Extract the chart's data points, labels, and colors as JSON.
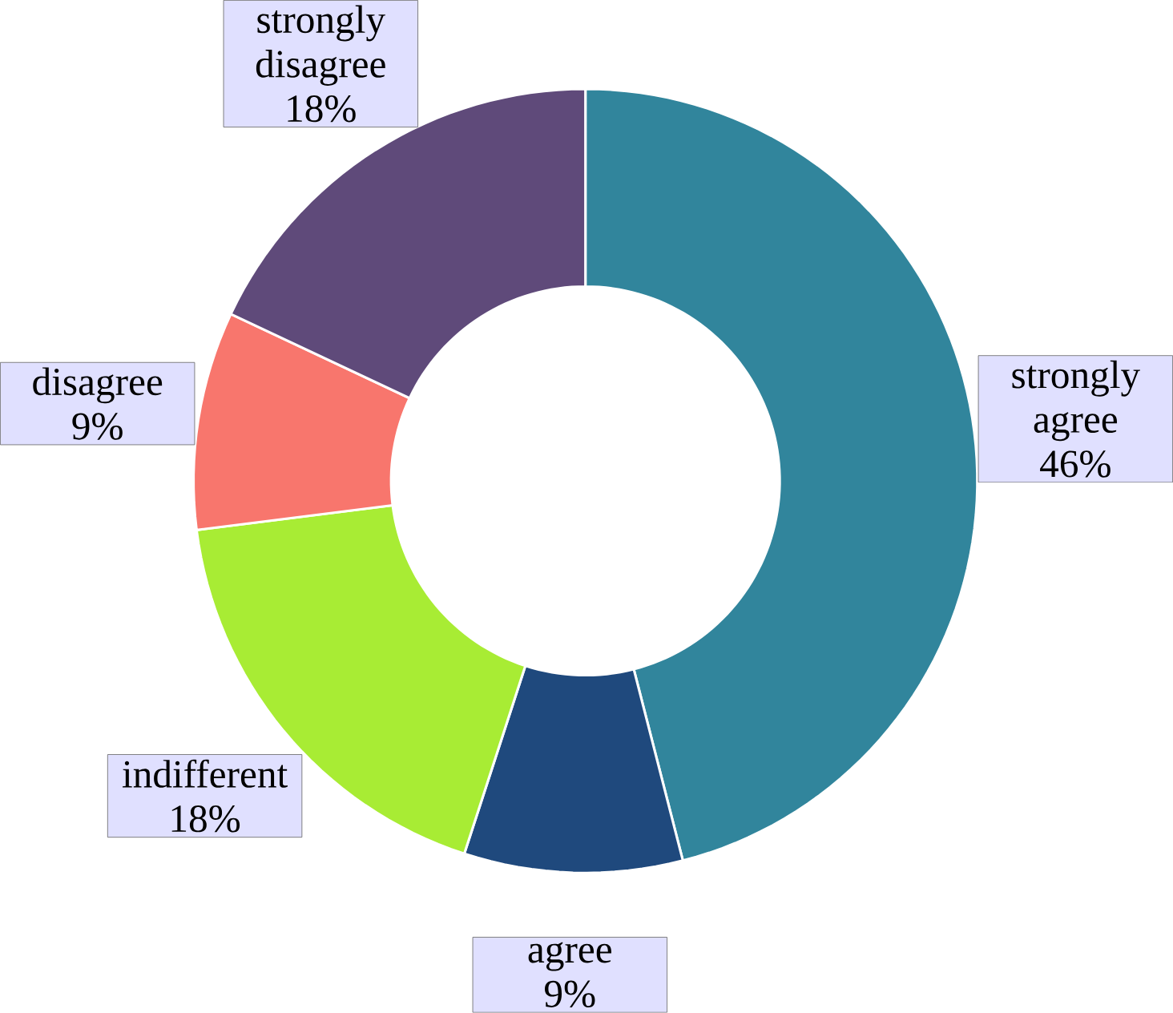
{
  "chart_data": {
    "type": "donut",
    "categories": [
      "strongly agree",
      "agree",
      "indifferent",
      "disagree",
      "strongly disagree"
    ],
    "values": [
      46,
      9,
      18,
      9,
      18
    ],
    "value_labels": [
      "46%",
      "9%",
      "18%",
      "9%",
      "18%"
    ],
    "colors": [
      "#31859c",
      "#1f497d",
      "#a8ec34",
      "#f8766d",
      "#5f4a7a"
    ]
  }
}
